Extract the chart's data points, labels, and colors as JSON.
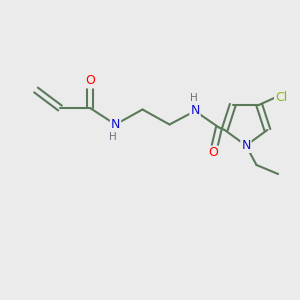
{
  "background_color": "#ebebeb",
  "bond_color": "#5a7a5a",
  "bond_width": 1.5,
  "atom_colors": {
    "O": "#ff0000",
    "N": "#1010cc",
    "Cl": "#88bb00",
    "C": "#5a7a5a",
    "H": "#707080"
  },
  "figsize": [
    3.0,
    3.0
  ],
  "dpi": 100,
  "xlim": [
    0,
    10
  ],
  "ylim": [
    0,
    10
  ]
}
